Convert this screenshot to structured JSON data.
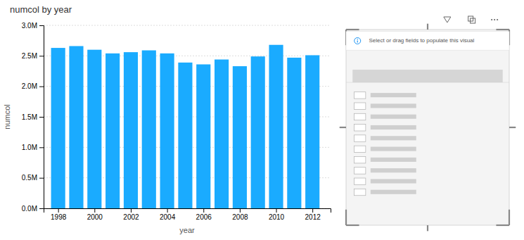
{
  "chart_data": {
    "type": "bar",
    "title": "numcol by year",
    "xlabel": "year",
    "ylabel": "numcol",
    "x": [
      1998,
      1999,
      2000,
      2001,
      2002,
      2003,
      2004,
      2005,
      2006,
      2007,
      2008,
      2009,
      2010,
      2011,
      2012
    ],
    "values": [
      2630000,
      2660000,
      2600000,
      2540000,
      2560000,
      2590000,
      2540000,
      2390000,
      2360000,
      2440000,
      2330000,
      2490000,
      2680000,
      2470000,
      2510000
    ],
    "color": "#1aabff",
    "xlim": [
      1997.2,
      2013.0
    ],
    "xticks": [
      1998,
      2000,
      2002,
      2004,
      2006,
      2008,
      2010,
      2012
    ],
    "ylim": [
      0,
      3000000
    ],
    "yticks": [
      {
        "value": 0,
        "label": "0.0M"
      },
      {
        "value": 500000,
        "label": "0.5M"
      },
      {
        "value": 1000000,
        "label": "1.0M"
      },
      {
        "value": 1500000,
        "label": "1.5M"
      },
      {
        "value": 2000000,
        "label": "2.0M"
      },
      {
        "value": 2500000,
        "label": "2.5M"
      },
      {
        "value": 3000000,
        "label": "3.0M"
      }
    ],
    "grid": true,
    "annotations": [
      "Select or drag fields to populate this visual"
    ]
  }
}
